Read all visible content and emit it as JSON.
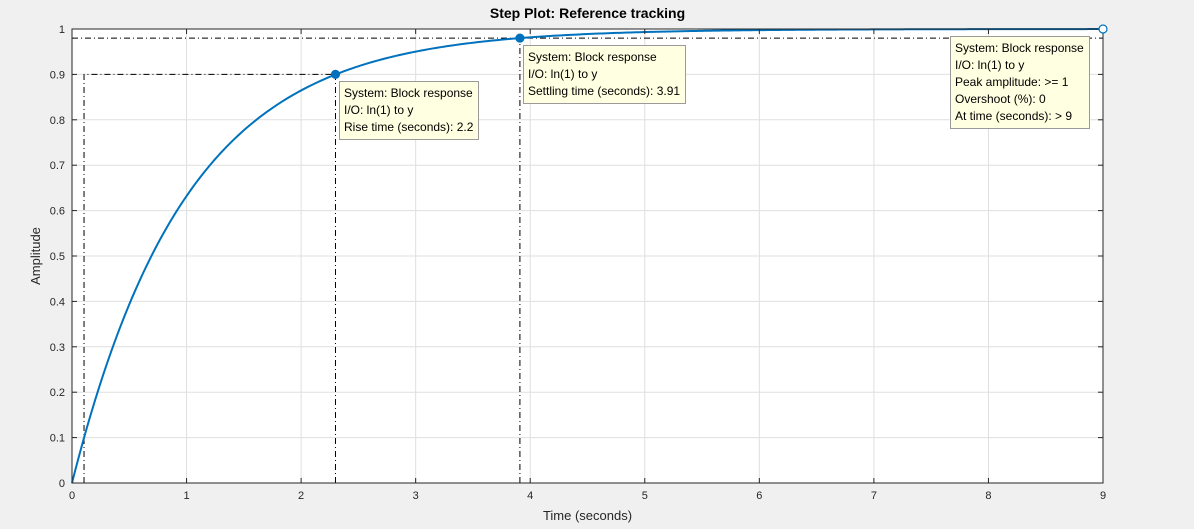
{
  "chart_data": {
    "type": "line",
    "title": "Step Plot: Reference tracking",
    "xlabel": "Time (seconds)",
    "ylabel": "Amplitude",
    "xlim": [
      0,
      9
    ],
    "ylim": [
      0,
      1
    ],
    "xticks": [
      0,
      1,
      2,
      3,
      4,
      5,
      6,
      7,
      8,
      9
    ],
    "yticks": [
      0,
      0.1,
      0.2,
      0.3,
      0.4,
      0.5,
      0.6,
      0.7,
      0.8,
      0.9,
      1
    ],
    "grid": true,
    "series": [
      {
        "color": "#0072bd",
        "x": [
          0,
          0.25,
          0.5,
          0.75,
          1,
          1.25,
          1.5,
          1.75,
          2,
          2.25,
          2.5,
          2.75,
          3,
          3.25,
          3.5,
          3.75,
          4,
          4.5,
          5,
          5.5,
          6,
          6.5,
          7,
          7.5,
          8,
          8.5,
          9
        ],
        "y": [
          0,
          0.221,
          0.393,
          0.528,
          0.632,
          0.713,
          0.777,
          0.826,
          0.865,
          0.895,
          0.918,
          0.936,
          0.95,
          0.961,
          0.97,
          0.976,
          0.982,
          0.989,
          0.993,
          0.996,
          0.998,
          0.998,
          0.999,
          0.999,
          1,
          1,
          1
        ]
      }
    ],
    "reference_lines": {
      "rise_start": {
        "x": 0.105,
        "y": 0.1
      },
      "rise_end": {
        "x": 2.3,
        "y": 0.9
      },
      "settling": {
        "x": 3.91,
        "y": 0.98
      }
    },
    "markers": [
      {
        "x": 2.3,
        "y": 0.9,
        "style": "filled"
      },
      {
        "x": 3.91,
        "y": 0.98,
        "style": "filled"
      },
      {
        "x": 9,
        "y": 1,
        "style": "open"
      }
    ],
    "datatips": {
      "rise": {
        "system": "System: Block response",
        "io": "I/O: ln(1) to y",
        "metric": "Rise time (seconds): 2.2"
      },
      "settling": {
        "system": "System: Block response",
        "io": "I/O: ln(1) to y",
        "metric": "Settling time (seconds): 3.91"
      },
      "peak": {
        "system": "System: Block response",
        "io": "I/O: ln(1) to y",
        "peak": "Peak amplitude: >= 1",
        "overshoot": "Overshoot (%): 0",
        "time": "At time (seconds): > 9"
      }
    }
  }
}
